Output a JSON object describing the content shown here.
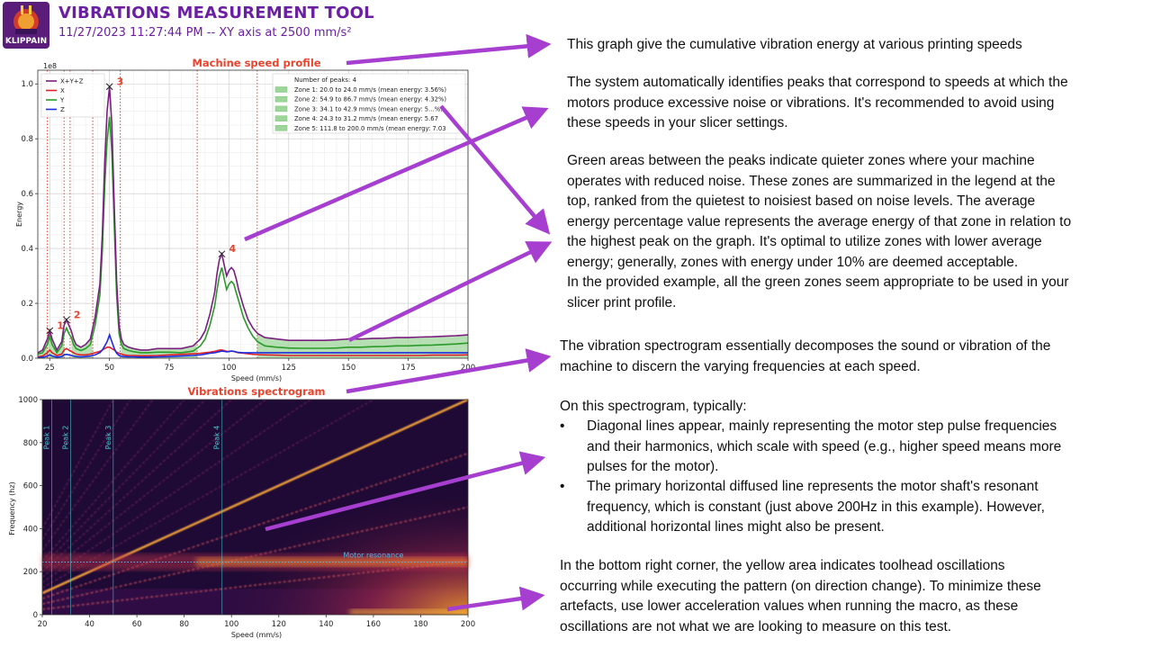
{
  "header": {
    "app_title": "VIBRATIONS MEASUREMENT TOOL",
    "subtitle": "11/27/2023 11:27:44 PM -- XY axis at 2500 mm/s²",
    "logo_text": "KLIPPAIN"
  },
  "colors": {
    "title_purple": "#6b1fa2",
    "arrow": "#a63fcf",
    "chart_title": "#e8432c",
    "total": "#7a1e7f",
    "x": "#e0202a",
    "y": "#2a9a2a",
    "z": "#1f2de0",
    "zone_fill": "#9ed59a",
    "peak_line": "#e8432c",
    "resonance": "#52b7e8"
  },
  "chart_data": [
    {
      "type": "line",
      "title": "Machine speed profile",
      "xlabel": "Speed (mm/s)",
      "ylabel": "Energy",
      "y_multiplier": "1e8",
      "xlim": [
        20,
        200
      ],
      "ylim": [
        0,
        1.05
      ],
      "xticks": [
        25,
        50,
        75,
        100,
        125,
        150,
        175,
        200
      ],
      "yticks": [
        0.0,
        0.2,
        0.4,
        0.6,
        0.8,
        1.0
      ],
      "grid": true,
      "legend_placement": "top-left",
      "x": [
        20,
        22,
        24,
        25,
        26,
        28,
        30,
        31,
        32,
        33,
        34,
        35,
        36,
        38,
        40,
        42,
        44,
        46,
        47,
        48,
        49,
        50,
        51,
        52,
        53,
        54,
        55,
        56,
        58,
        60,
        63,
        66,
        70,
        75,
        80,
        85,
        88,
        90,
        92,
        94,
        95,
        96,
        97,
        98,
        99,
        100,
        101,
        102,
        103,
        104,
        106,
        108,
        110,
        112,
        115,
        120,
        125,
        130,
        135,
        140,
        145,
        150,
        155,
        160,
        165,
        170,
        175,
        180,
        185,
        190,
        195,
        200
      ],
      "series": [
        {
          "name": "X+Y+Z",
          "values": [
            0.02,
            0.03,
            0.07,
            0.1,
            0.07,
            0.03,
            0.06,
            0.12,
            0.14,
            0.12,
            0.1,
            0.07,
            0.05,
            0.04,
            0.05,
            0.07,
            0.15,
            0.27,
            0.45,
            0.72,
            0.9,
            0.99,
            0.85,
            0.55,
            0.28,
            0.12,
            0.07,
            0.05,
            0.04,
            0.035,
            0.03,
            0.03,
            0.035,
            0.035,
            0.035,
            0.045,
            0.07,
            0.1,
            0.16,
            0.24,
            0.31,
            0.36,
            0.38,
            0.34,
            0.3,
            0.32,
            0.33,
            0.32,
            0.29,
            0.25,
            0.19,
            0.14,
            0.11,
            0.09,
            0.075,
            0.07,
            0.065,
            0.065,
            0.065,
            0.065,
            0.067,
            0.07,
            0.07,
            0.072,
            0.073,
            0.075,
            0.075,
            0.077,
            0.078,
            0.08,
            0.082,
            0.085
          ]
        },
        {
          "name": "X",
          "values": [
            0.005,
            0.008,
            0.02,
            0.03,
            0.02,
            0.01,
            0.015,
            0.03,
            0.035,
            0.03,
            0.025,
            0.02,
            0.015,
            0.012,
            0.012,
            0.015,
            0.02,
            0.025,
            0.03,
            0.035,
            0.04,
            0.04,
            0.035,
            0.03,
            0.022,
            0.018,
            0.015,
            0.012,
            0.01,
            0.01,
            0.009,
            0.009,
            0.01,
            0.012,
            0.014,
            0.016,
            0.018,
            0.02,
            0.022,
            0.025,
            0.027,
            0.03,
            0.03,
            0.028,
            0.025,
            0.025,
            0.026,
            0.025,
            0.022,
            0.02,
            0.018,
            0.016,
            0.014,
            0.013,
            0.012,
            0.011,
            0.01,
            0.01,
            0.01,
            0.01,
            0.01,
            0.01,
            0.01,
            0.01,
            0.01,
            0.01,
            0.01,
            0.01,
            0.011,
            0.011,
            0.011,
            0.012
          ]
        },
        {
          "name": "Y",
          "values": [
            0.015,
            0.02,
            0.05,
            0.08,
            0.05,
            0.02,
            0.045,
            0.09,
            0.11,
            0.09,
            0.075,
            0.05,
            0.035,
            0.028,
            0.035,
            0.05,
            0.12,
            0.23,
            0.39,
            0.63,
            0.79,
            0.88,
            0.75,
            0.48,
            0.23,
            0.09,
            0.05,
            0.035,
            0.028,
            0.024,
            0.02,
            0.02,
            0.022,
            0.022,
            0.02,
            0.026,
            0.045,
            0.07,
            0.12,
            0.19,
            0.25,
            0.3,
            0.33,
            0.29,
            0.25,
            0.27,
            0.28,
            0.27,
            0.24,
            0.21,
            0.15,
            0.11,
            0.08,
            0.06,
            0.045,
            0.04,
            0.037,
            0.036,
            0.036,
            0.036,
            0.037,
            0.04,
            0.04,
            0.042,
            0.043,
            0.045,
            0.045,
            0.047,
            0.048,
            0.05,
            0.052,
            0.055
          ]
        },
        {
          "name": "Z",
          "values": [
            0.002,
            0.003,
            0.008,
            0.012,
            0.008,
            0.004,
            0.006,
            0.012,
            0.014,
            0.012,
            0.01,
            0.008,
            0.006,
            0.005,
            0.006,
            0.008,
            0.012,
            0.02,
            0.03,
            0.045,
            0.06,
            0.085,
            0.06,
            0.035,
            0.018,
            0.01,
            0.007,
            0.006,
            0.005,
            0.005,
            0.004,
            0.004,
            0.005,
            0.006,
            0.008,
            0.01,
            0.012,
            0.015,
            0.018,
            0.02,
            0.022,
            0.024,
            0.026,
            0.025,
            0.023,
            0.024,
            0.026,
            0.025,
            0.023,
            0.021,
            0.02,
            0.02,
            0.02,
            0.02,
            0.02,
            0.02,
            0.02,
            0.02,
            0.02,
            0.02,
            0.02,
            0.02,
            0.02,
            0.02,
            0.02,
            0.02,
            0.02,
            0.02,
            0.02,
            0.02,
            0.02,
            0.02
          ]
        }
      ],
      "peaks": [
        {
          "label": "1",
          "x": 25,
          "y": 0.1
        },
        {
          "label": "2",
          "x": 32,
          "y": 0.14
        },
        {
          "label": "3",
          "x": 50,
          "y": 0.99
        },
        {
          "label": "4",
          "x": 97,
          "y": 0.38
        }
      ],
      "peak_bounds": [
        24.0,
        31.0,
        33.5,
        43.0,
        54.5,
        86.7,
        111.8
      ],
      "zones": [
        [
          20.0,
          24.0
        ],
        [
          54.9,
          86.7
        ],
        [
          34.1,
          42.9
        ],
        [
          24.3,
          31.2
        ],
        [
          111.8,
          200.0
        ]
      ],
      "legend": {
        "header": "Number of peaks: 4",
        "entries": [
          "Zone 1: 20.0 to 24.0 mm/s (mean energy: 3.56%)",
          "Zone 2: 54.9 to 86.7 mm/s (mean energy: 4.32%)",
          "Zone 3: 34.1 to 42.9 mm/s (mean energy: 5.‥%)",
          "Zone 4: 24.3 to 31.2 mm/s (mean energy: 5.67",
          "Zone 5: 111.8 to 200.0 mm/s (mean energy: 7.03"
        ]
      }
    },
    {
      "type": "heatmap",
      "title": "Vibrations spectrogram",
      "xlabel": "Speed (mm/s)",
      "ylabel": "Frequency (hz)",
      "xlim": [
        20,
        200
      ],
      "ylim": [
        0,
        1000
      ],
      "xticks": [
        20,
        40,
        60,
        80,
        100,
        120,
        140,
        160,
        180,
        200
      ],
      "yticks": [
        0,
        200,
        400,
        600,
        800,
        1000
      ],
      "diagonal_lines_hz_per_mmps": [
        1.25,
        2.5,
        3.75,
        5.0,
        6.25,
        7.5,
        8.75,
        10.0,
        11.25,
        12.5,
        15.0,
        17.5,
        20.0
      ],
      "resonance_hz": 245,
      "resonance_label": "Motor resonance",
      "peak_markers": [
        {
          "label": "Peak 1",
          "x": 24
        },
        {
          "label": "Peak 2",
          "x": 32
        },
        {
          "label": "Peak 3",
          "x": 50
        },
        {
          "label": "Peak 4",
          "x": 96
        }
      ]
    }
  ],
  "notes": {
    "graph_intro": "This graph give the cumulative vibration energy at various printing speeds",
    "peaks_auto": [
      "The system automatically identifies peaks that correspond to speeds at which the",
      "motors produce excessive noise or vibrations. It's recommended to avoid using",
      "these speeds in your slicer settings."
    ],
    "green_areas": [
      "Green areas between the peaks indicate quieter zones where your machine",
      "operates with reduced noise. These zones are summarized in the legend at the",
      "top, ranked from the quietest to noisiest based on noise levels. The average",
      "energy percentage value represents the average energy of that zone in relation to",
      "the highest peak on the graph. It's optimal to utilize zones with lower average",
      "energy; generally, zones with energy under 10% are deemed acceptable.",
      "In the provided example, all the green zones seem appropriate to be used in your",
      "slicer print profile."
    ],
    "spectro_intro": [
      "The vibration spectrogram essentially decomposes the sound or vibration of the",
      "machine to discern the varying frequencies at each speed."
    ],
    "typically": "On this spectrogram, typically:",
    "bullet1": [
      "Diagonal lines appear, mainly representing the motor step pulse frequencies",
      "and their harmonics, which scale with speed (e.g., higher speed means more",
      "pulses for the motor)."
    ],
    "bullet2": [
      "The primary horizontal diffused line represents the motor shaft's resonant",
      "frequency, which is constant (just above 200Hz in this example). However,",
      "additional horizontal lines might also be present."
    ],
    "bottom_right": [
      "In the bottom right corner, the yellow area indicates toolhead oscillations",
      "occurring while executing the pattern (on direction change). To minimize these",
      "artefacts, use lower acceleration values when running the macro, as these",
      "oscillations are not what we are looking to measure on this test."
    ],
    "bullet_glyph": "•"
  }
}
